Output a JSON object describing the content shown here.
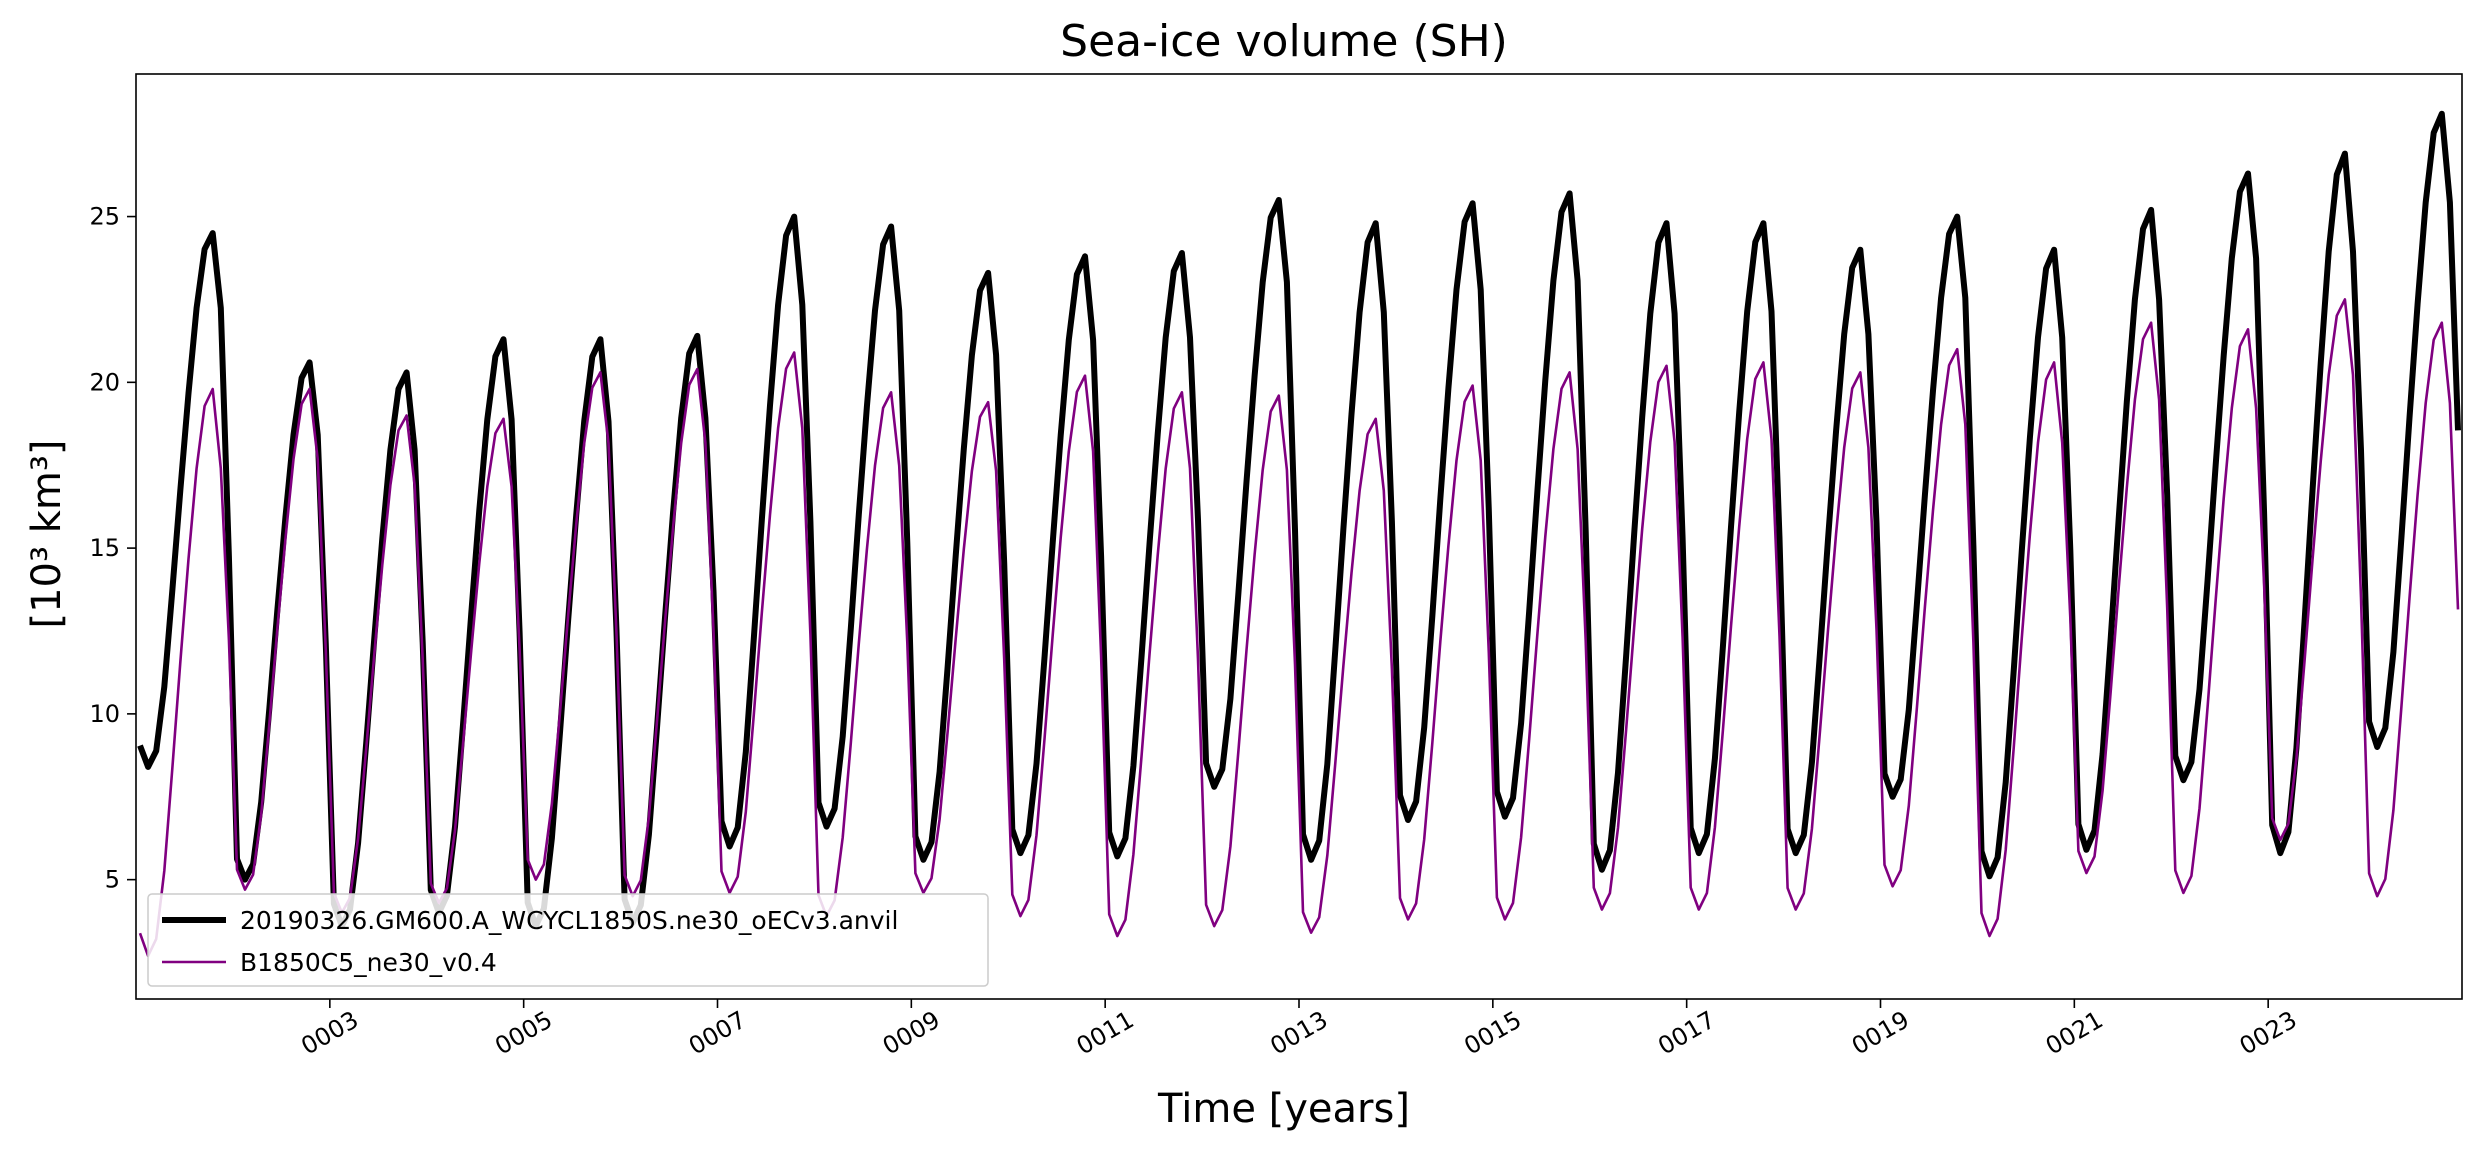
{
  "chart_data": {
    "type": "line",
    "title": "Sea-ice volume (SH)",
    "xlabel": "Time [years]",
    "ylabel": "[10³ km³]",
    "xlim": [
      1.0,
      25.0
    ],
    "ylim": [
      1.4,
      29.3
    ],
    "x_ticks": [
      3,
      5,
      7,
      9,
      11,
      13,
      15,
      17,
      19,
      21,
      23
    ],
    "x_tick_labels": [
      "0003",
      "0005",
      "0007",
      "0009",
      "0011",
      "0013",
      "0015",
      "0017",
      "0019",
      "0021",
      "0023"
    ],
    "y_ticks": [
      5,
      10,
      15,
      20,
      25
    ],
    "y_tick_labels": [
      "5",
      "10",
      "15",
      "20",
      "25"
    ],
    "grid": false,
    "legend_position": "lower-left",
    "series": [
      {
        "name": "20190326.GM600.A_WCYCL1850S.ne30_oECv3.anvil",
        "color": "#000000",
        "style": "thick",
        "annual_max": [
          24.5,
          20.6,
          20.3,
          21.3,
          21.3,
          21.4,
          25.0,
          24.7,
          23.3,
          23.8,
          23.9,
          25.5,
          24.8,
          25.4,
          25.7,
          24.8,
          24.8,
          24.0,
          25.0,
          24.0,
          25.2,
          26.3,
          26.9,
          28.1
        ],
        "annual_min": [
          8.4,
          5.0,
          3.6,
          4.0,
          3.6,
          3.7,
          6.0,
          6.6,
          5.6,
          5.8,
          5.7,
          7.8,
          5.6,
          6.8,
          6.9,
          5.3,
          5.8,
          5.8,
          7.5,
          5.1,
          5.9,
          8.0,
          5.8,
          9.0
        ]
      },
      {
        "name": "B1850C5_ne30_v0.4",
        "color": "#800080",
        "style": "thin",
        "annual_max": [
          19.8,
          19.8,
          19.0,
          18.9,
          20.3,
          20.4,
          20.9,
          19.7,
          19.4,
          20.2,
          19.7,
          19.6,
          18.9,
          19.9,
          20.3,
          20.5,
          20.6,
          20.3,
          21.0,
          20.6,
          21.8,
          21.6,
          22.5,
          21.8
        ],
        "annual_min": [
          2.7,
          4.7,
          4.0,
          4.3,
          5.0,
          4.5,
          4.6,
          3.9,
          4.6,
          3.9,
          3.3,
          3.6,
          3.4,
          3.8,
          3.8,
          4.1,
          4.1,
          4.1,
          4.8,
          3.3,
          5.2,
          4.6,
          6.2,
          4.5
        ]
      }
    ]
  }
}
